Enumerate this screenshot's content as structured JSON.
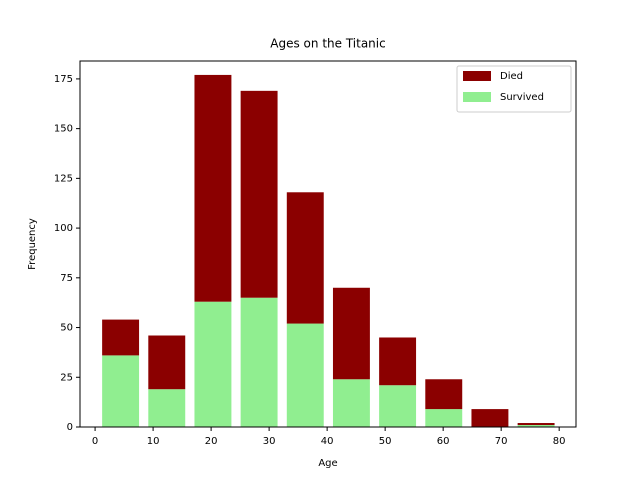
{
  "chart_data": {
    "type": "histogram",
    "title": "Ages on the Titanic",
    "xlabel": "Age",
    "ylabel": "Frequency",
    "bins": [
      0.42,
      8.378,
      16.336,
      24.294,
      32.252,
      40.21,
      48.168,
      56.126,
      64.084,
      72.042,
      80
    ],
    "series": [
      {
        "name": "Died",
        "color": "#8b0000",
        "values": [
          18,
          27,
          114,
          104,
          66,
          46,
          24,
          15,
          9,
          1
        ]
      },
      {
        "name": "Survived",
        "color": "#90ee90",
        "values": [
          36,
          19,
          63,
          65,
          52,
          24,
          21,
          9,
          0,
          1
        ]
      }
    ],
    "stacked": true,
    "xlim": [
      -2.6,
      82.9
    ],
    "xticks": [
      0,
      10,
      20,
      30,
      40,
      50,
      60,
      70,
      80
    ],
    "ylim": [
      0,
      184
    ],
    "yticks": [
      0,
      25,
      50,
      75,
      100,
      125,
      150,
      175
    ],
    "legend": "upper right"
  }
}
